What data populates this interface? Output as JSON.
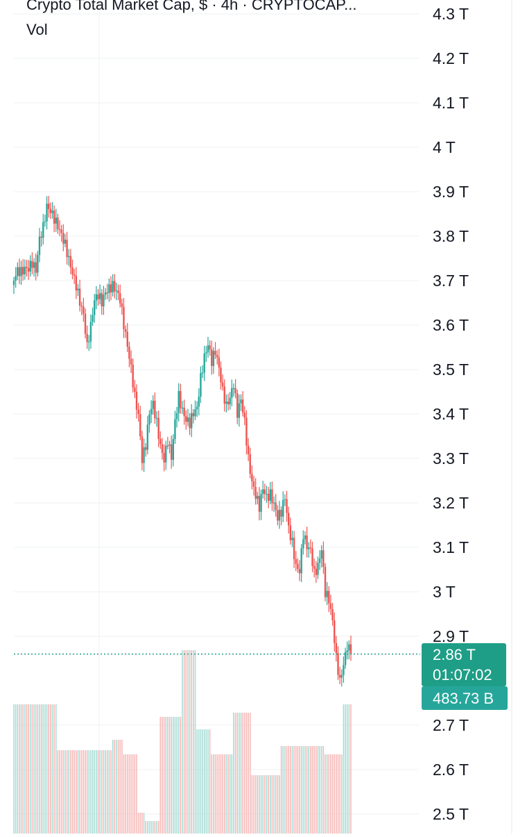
{
  "header": {
    "title": "Crypto Total Market Cap, $ · 4h · CRYPTOCAP...",
    "volume_label": "Vol"
  },
  "price_tag": {
    "price": "2.86 T",
    "countdown": "01:07:02",
    "volume": "483.73 B"
  },
  "colors": {
    "up": "#26a69a",
    "down": "#ef5350",
    "tag_bg": "#1e9e86",
    "vol_tag_bg": "#26a69a",
    "grid": "#eef0f3"
  },
  "chart_data": {
    "type": "candlestick",
    "title": "Crypto Total Market Cap, $ · 4h · CRYPTOCAP...",
    "y_unit": "T",
    "ylim": [
      2.47,
      4.34
    ],
    "y_ticks": [
      {
        "value": 4.3,
        "label": "4.3 T"
      },
      {
        "value": 4.2,
        "label": "4.2 T"
      },
      {
        "value": 4.1,
        "label": "4.1 T"
      },
      {
        "value": 4.0,
        "label": "4 T"
      },
      {
        "value": 3.9,
        "label": "3.9 T"
      },
      {
        "value": 3.8,
        "label": "3.8 T"
      },
      {
        "value": 3.7,
        "label": "3.7 T"
      },
      {
        "value": 3.6,
        "label": "3.6 T"
      },
      {
        "value": 3.5,
        "label": "3.5 T"
      },
      {
        "value": 3.4,
        "label": "3.4 T"
      },
      {
        "value": 3.3,
        "label": "3.3 T"
      },
      {
        "value": 3.2,
        "label": "3.2 T"
      },
      {
        "value": 3.1,
        "label": "3.1 T"
      },
      {
        "value": 3.0,
        "label": "3 T"
      },
      {
        "value": 2.9,
        "label": "2.9 T"
      },
      {
        "value": 2.7,
        "label": "2.7 T"
      },
      {
        "value": 2.6,
        "label": "2.6 T"
      },
      {
        "value": 2.5,
        "label": "2.5 T"
      }
    ],
    "last_price": 2.86,
    "close_path": [
      3.7,
      3.72,
      3.72,
      3.73,
      3.73,
      3.74,
      3.72,
      3.79,
      3.82,
      3.87,
      3.86,
      3.84,
      3.82,
      3.8,
      3.78,
      3.75,
      3.72,
      3.69,
      3.65,
      3.62,
      3.55,
      3.6,
      3.66,
      3.67,
      3.65,
      3.67,
      3.68,
      3.69,
      3.68,
      3.66,
      3.6,
      3.55,
      3.5,
      3.44,
      3.4,
      3.3,
      3.33,
      3.4,
      3.42,
      3.38,
      3.33,
      3.3,
      3.34,
      3.3,
      3.38,
      3.44,
      3.41,
      3.39,
      3.38,
      3.4,
      3.41,
      3.48,
      3.53,
      3.56,
      3.52,
      3.54,
      3.5,
      3.45,
      3.42,
      3.44,
      3.47,
      3.4,
      3.43,
      3.38,
      3.3,
      3.25,
      3.22,
      3.19,
      3.23,
      3.21,
      3.22,
      3.2,
      3.17,
      3.18,
      3.21,
      3.14,
      3.11,
      3.06,
      3.05,
      3.13,
      3.1,
      3.09,
      3.04,
      3.06,
      3.1,
      3.0,
      2.98,
      2.93,
      2.85,
      2.8,
      2.84,
      2.88,
      2.86
    ],
    "volume_path": [
      0.62,
      0.62,
      0.62,
      0.62,
      0.62,
      0.62,
      0.62,
      0.62,
      0.62,
      0.62,
      0.62,
      0.62,
      0.4,
      0.4,
      0.4,
      0.4,
      0.4,
      0.4,
      0.4,
      0.4,
      0.4,
      0.4,
      0.4,
      0.4,
      0.4,
      0.4,
      0.4,
      0.45,
      0.45,
      0.45,
      0.38,
      0.38,
      0.38,
      0.38,
      0.1,
      0.1,
      0.06,
      0.06,
      0.06,
      0.06,
      0.56,
      0.56,
      0.56,
      0.56,
      0.56,
      0.56,
      0.88,
      0.88,
      0.88,
      0.88,
      0.5,
      0.5,
      0.5,
      0.5,
      0.38,
      0.38,
      0.38,
      0.38,
      0.38,
      0.38,
      0.58,
      0.58,
      0.58,
      0.58,
      0.58,
      0.28,
      0.28,
      0.28,
      0.28,
      0.28,
      0.28,
      0.28,
      0.28,
      0.42,
      0.42,
      0.42,
      0.42,
      0.42,
      0.42,
      0.42,
      0.42,
      0.42,
      0.42,
      0.42,
      0.42,
      0.38,
      0.38,
      0.38,
      0.38,
      0.38,
      0.62,
      0.62,
      0.62
    ]
  }
}
